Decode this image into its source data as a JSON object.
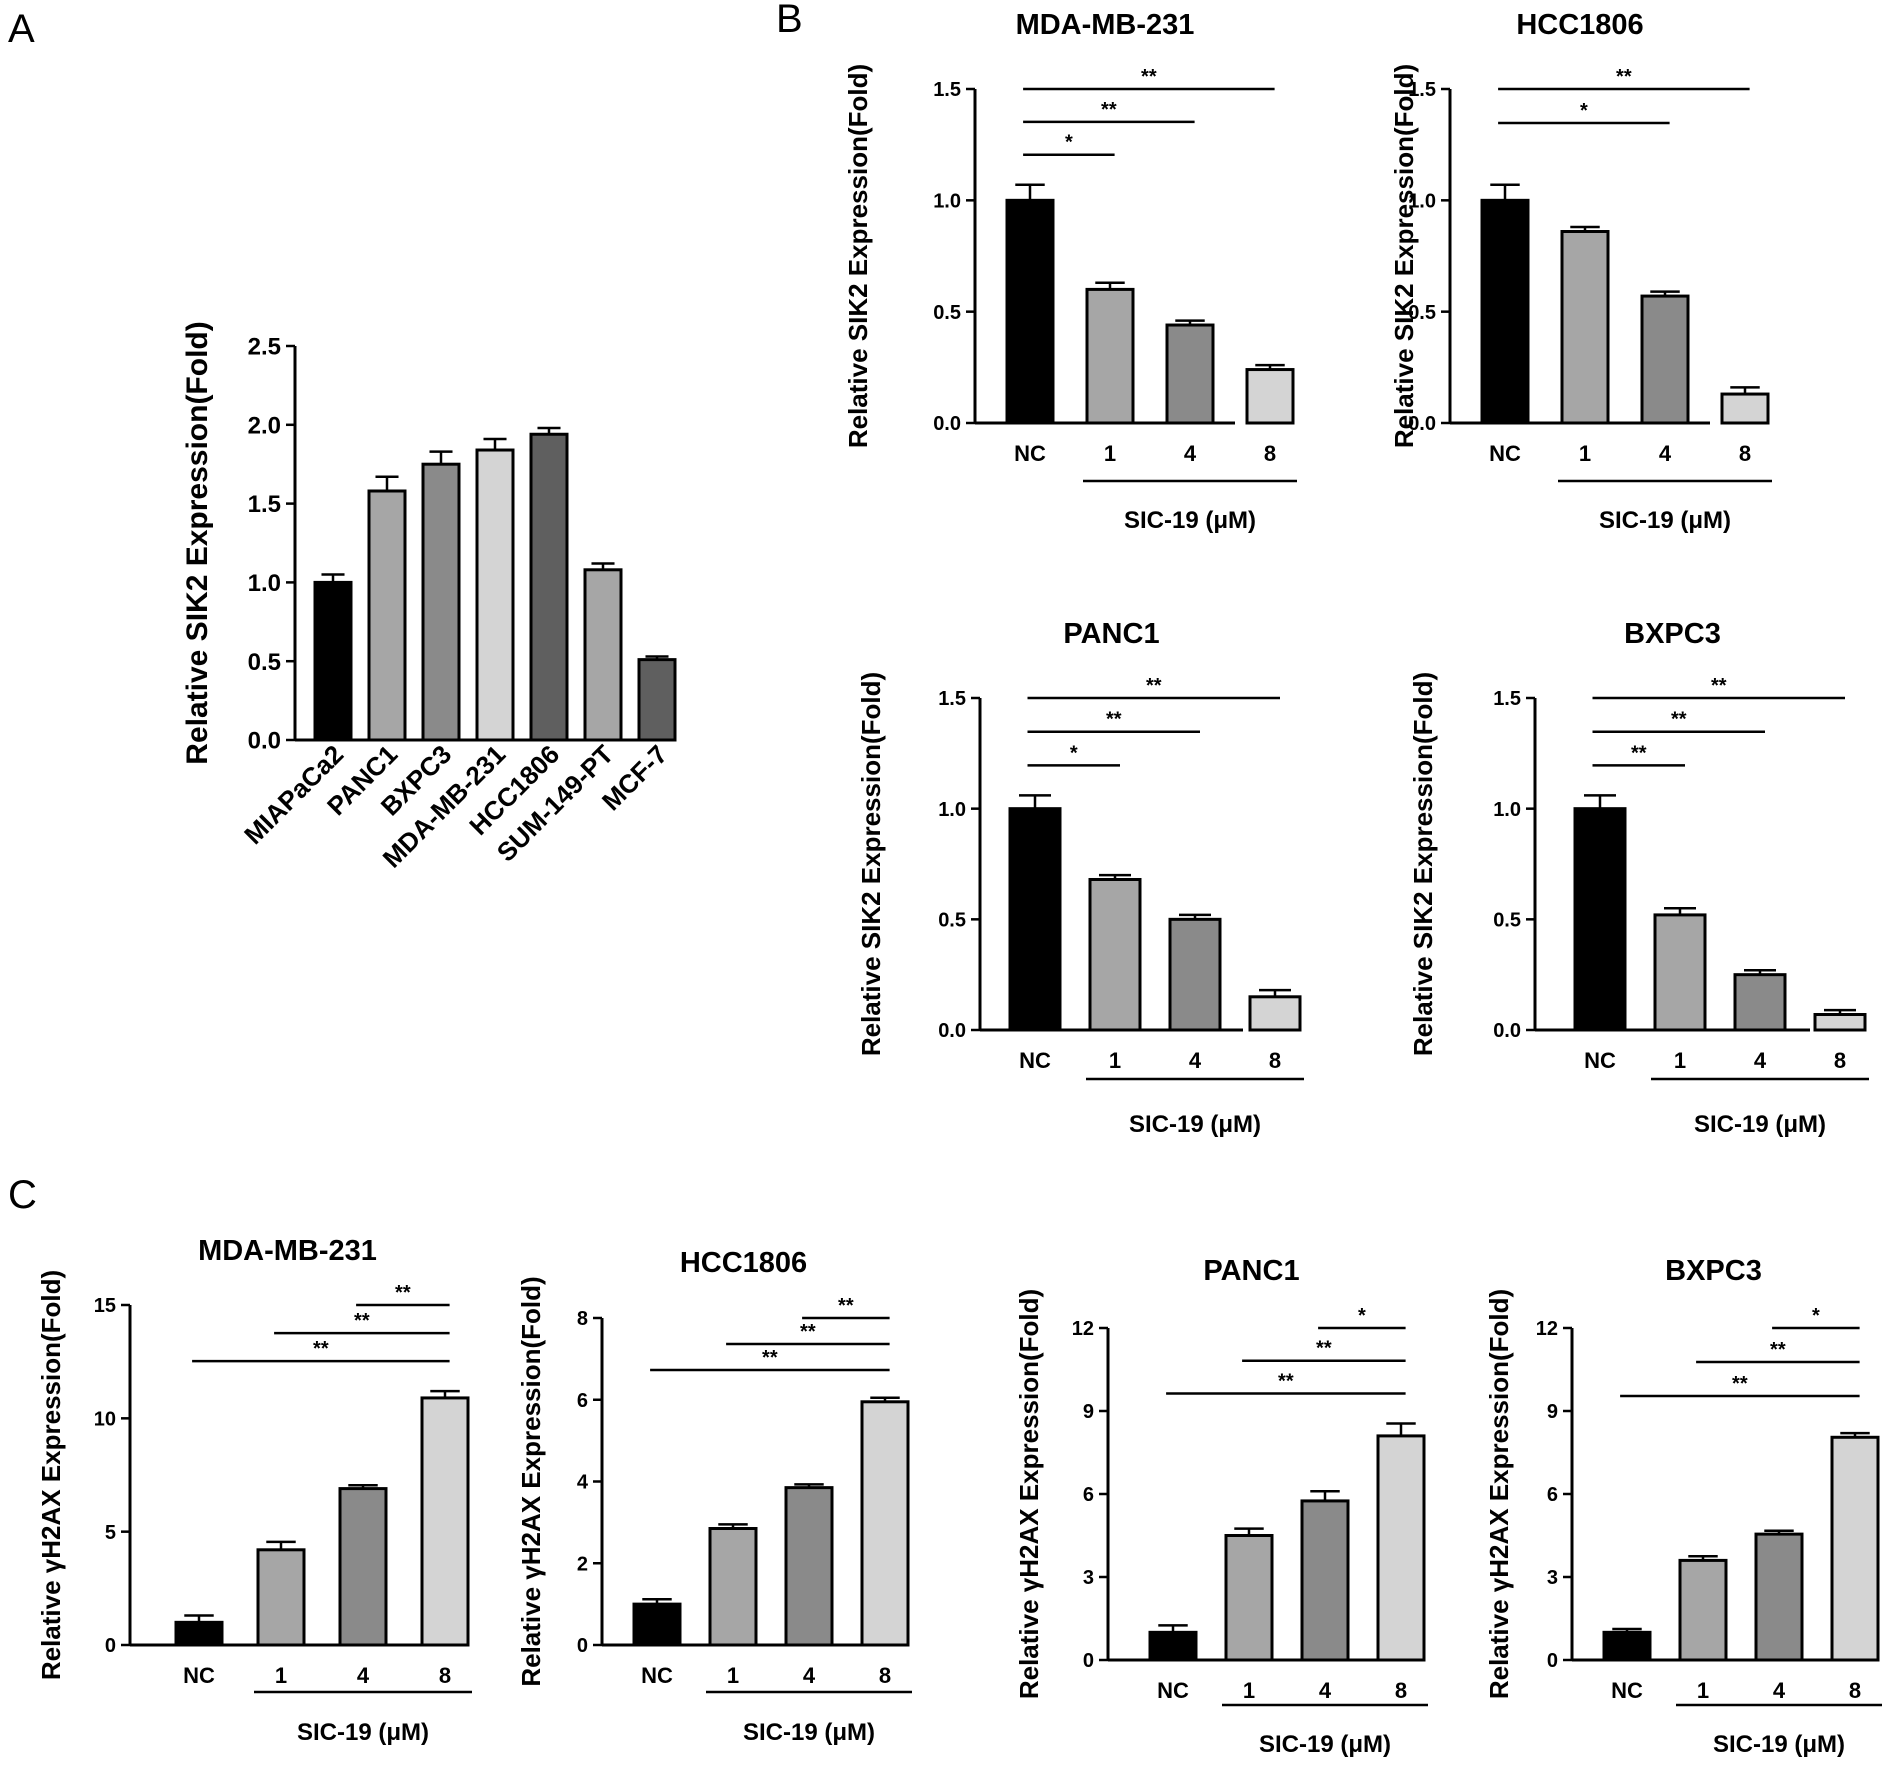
{
  "panel_labels": [
    "A",
    "B",
    "C"
  ],
  "colors": {
    "black": "#000000",
    "grey_light": "#a6a6a6",
    "grey_mid": "#8a8a8a",
    "grey_dark": "#5f5f5f",
    "grey_pale": "#d4d4d4"
  },
  "chart_data": [
    {
      "panel": "A",
      "type": "bar",
      "title": "",
      "ylabel": "Relative SIK2 Expression(Fold)",
      "xlabel": "",
      "categories": [
        "MIAPaCa2",
        "PANC1",
        "BXPC3",
        "MDA-MB-231",
        "HCC1806",
        "SUM-149-PT",
        "MCF-7"
      ],
      "values": [
        1.0,
        1.58,
        1.75,
        1.84,
        1.94,
        1.08,
        0.51
      ],
      "errors": [
        0.05,
        0.09,
        0.08,
        0.07,
        0.04,
        0.04,
        0.02
      ],
      "bar_colors": [
        "#000000",
        "#a6a6a6",
        "#8a8a8a",
        "#d4d4d4",
        "#5f5f5f",
        "#a6a6a6",
        "#5f5f5f"
      ],
      "ylim": [
        0,
        2.5
      ],
      "yticks": [
        "0.0",
        "0.5",
        "1.0",
        "1.5",
        "2.0",
        "2.5"
      ]
    },
    {
      "panel": "B",
      "type": "bar",
      "title": "MDA-MB-231",
      "ylabel": "Relative SIK2 Expression(Fold)",
      "xlabel": "SIC-19 (μM)",
      "categories": [
        "NC",
        "1",
        "4",
        "8"
      ],
      "values": [
        1.0,
        0.6,
        0.44,
        0.24
      ],
      "errors": [
        0.07,
        0.03,
        0.02,
        0.02
      ],
      "ylim": [
        0,
        1.5
      ],
      "yticks": [
        "0.0",
        "0.5",
        "1.0",
        "1.5"
      ],
      "significance": [
        {
          "from": 0,
          "to": 1,
          "label": "*"
        },
        {
          "from": 0,
          "to": 2,
          "label": "**"
        },
        {
          "from": 0,
          "to": 3,
          "label": "**"
        }
      ]
    },
    {
      "panel": "B",
      "type": "bar",
      "title": "HCC1806",
      "ylabel": "Relative SIK2 Expression(Fold)",
      "xlabel": "SIC-19 (μM)",
      "categories": [
        "NC",
        "1",
        "4",
        "8"
      ],
      "values": [
        1.0,
        0.86,
        0.57,
        0.13
      ],
      "errors": [
        0.07,
        0.02,
        0.02,
        0.03
      ],
      "ylim": [
        0,
        1.5
      ],
      "yticks": [
        "0.0",
        "0.5",
        "1.0",
        "1.5"
      ],
      "significance": [
        {
          "from": 0,
          "to": 2,
          "label": "*"
        },
        {
          "from": 0,
          "to": 3,
          "label": "**"
        }
      ]
    },
    {
      "panel": "B",
      "type": "bar",
      "title": "PANC1",
      "ylabel": "Relative SIK2 Expression(Fold)",
      "xlabel": "SIC-19 (μM)",
      "categories": [
        "NC",
        "1",
        "4",
        "8"
      ],
      "values": [
        1.0,
        0.68,
        0.5,
        0.15
      ],
      "errors": [
        0.06,
        0.02,
        0.02,
        0.03
      ],
      "ylim": [
        0,
        1.5
      ],
      "yticks": [
        "0.0",
        "0.5",
        "1.0",
        "1.5"
      ],
      "significance": [
        {
          "from": 0,
          "to": 1,
          "label": "*"
        },
        {
          "from": 0,
          "to": 2,
          "label": "**"
        },
        {
          "from": 0,
          "to": 3,
          "label": "**"
        }
      ]
    },
    {
      "panel": "B",
      "type": "bar",
      "title": "BXPC3",
      "ylabel": "Relative SIK2 Expression(Fold)",
      "xlabel": "SIC-19 (μM)",
      "categories": [
        "NC",
        "1",
        "4",
        "8"
      ],
      "values": [
        1.0,
        0.52,
        0.25,
        0.07
      ],
      "errors": [
        0.06,
        0.03,
        0.02,
        0.02
      ],
      "ylim": [
        0,
        1.5
      ],
      "yticks": [
        "0.0",
        "0.5",
        "1.0",
        "1.5"
      ],
      "significance": [
        {
          "from": 0,
          "to": 1,
          "label": "**"
        },
        {
          "from": 0,
          "to": 2,
          "label": "**"
        },
        {
          "from": 0,
          "to": 3,
          "label": "**"
        }
      ]
    },
    {
      "panel": "C",
      "type": "bar",
      "title": "MDA-MB-231",
      "ylabel": "Relative γH2AX Expression(Fold)",
      "xlabel": "SIC-19 (μM)",
      "categories": [
        "NC",
        "1",
        "4",
        "8"
      ],
      "values": [
        1.0,
        4.2,
        6.9,
        10.9
      ],
      "errors": [
        0.3,
        0.35,
        0.15,
        0.3
      ],
      "ylim": [
        0,
        15
      ],
      "yticks": [
        "0",
        "5",
        "10",
        "15"
      ],
      "significance": [
        {
          "from": 0,
          "to": 3,
          "label": "**"
        },
        {
          "from": 1,
          "to": 3,
          "label": "**"
        },
        {
          "from": 2,
          "to": 3,
          "label": "**"
        }
      ]
    },
    {
      "panel": "C",
      "type": "bar",
      "title": "HCC1806",
      "ylabel": "Relative γH2AX Expression(Fold)",
      "xlabel": "SIC-19 (μM)",
      "categories": [
        "NC",
        "1",
        "4",
        "8"
      ],
      "values": [
        1.0,
        2.85,
        3.85,
        5.95
      ],
      "errors": [
        0.12,
        0.1,
        0.08,
        0.1
      ],
      "ylim": [
        0,
        8
      ],
      "yticks": [
        "0",
        "2",
        "4",
        "6",
        "8"
      ],
      "significance": [
        {
          "from": 0,
          "to": 3,
          "label": "**"
        },
        {
          "from": 1,
          "to": 3,
          "label": "**"
        },
        {
          "from": 2,
          "to": 3,
          "label": "**"
        }
      ]
    },
    {
      "panel": "C",
      "type": "bar",
      "title": "PANC1",
      "ylabel": "Relative γH2AX Expression(Fold)",
      "xlabel": "SIC-19 (μM)",
      "categories": [
        "NC",
        "1",
        "4",
        "8"
      ],
      "values": [
        1.0,
        4.5,
        5.75,
        8.1
      ],
      "errors": [
        0.25,
        0.25,
        0.35,
        0.45
      ],
      "ylim": [
        0,
        12
      ],
      "yticks": [
        "0",
        "3",
        "6",
        "9",
        "12"
      ],
      "significance": [
        {
          "from": 0,
          "to": 3,
          "label": "**"
        },
        {
          "from": 1,
          "to": 3,
          "label": "**"
        },
        {
          "from": 2,
          "to": 3,
          "label": "*"
        }
      ]
    },
    {
      "panel": "C",
      "type": "bar",
      "title": "BXPC3",
      "ylabel": "Relative γH2AX Expression(Fold)",
      "xlabel": "SIC-19 (μM)",
      "categories": [
        "NC",
        "1",
        "4",
        "8"
      ],
      "values": [
        1.0,
        3.6,
        4.55,
        8.05
      ],
      "errors": [
        0.12,
        0.15,
        0.12,
        0.15
      ],
      "ylim": [
        0,
        12
      ],
      "yticks": [
        "0",
        "3",
        "6",
        "9",
        "12"
      ],
      "significance": [
        {
          "from": 0,
          "to": 3,
          "label": "**"
        },
        {
          "from": 1,
          "to": 3,
          "label": "**"
        },
        {
          "from": 2,
          "to": 3,
          "label": "*"
        }
      ]
    }
  ]
}
